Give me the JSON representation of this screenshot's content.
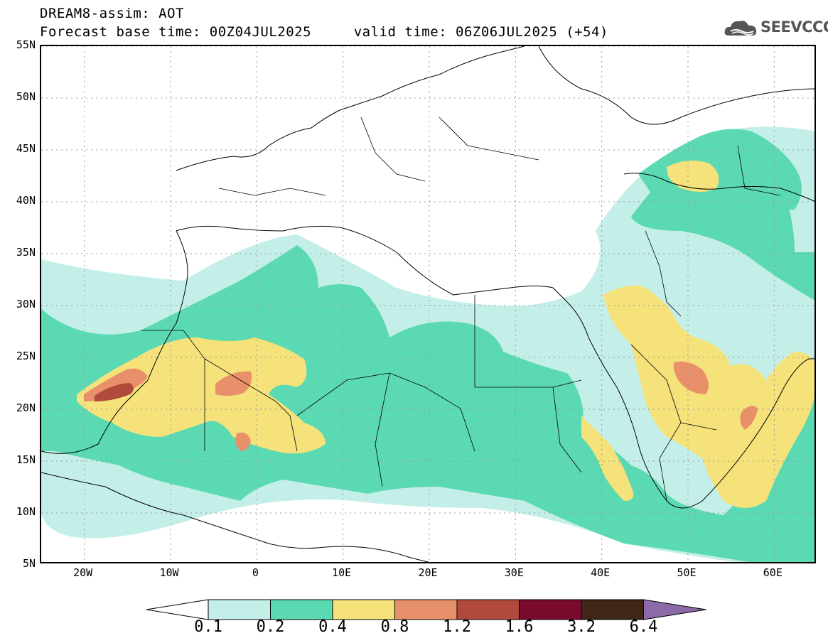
{
  "header": {
    "title_line1": "DREAM8-assim: AOT",
    "title_line2": "Forecast base time: 00Z04JUL2025     valid time: 06Z06JUL2025 (+54)"
  },
  "logo": {
    "text": "SEEVCCC",
    "icon": "cloud-logo-icon",
    "color": "#555555"
  },
  "map": {
    "lon_range": [
      -25,
      65
    ],
    "lat_range": [
      5,
      55
    ],
    "lat_ticks": [
      {
        "value": 55,
        "label": "55N"
      },
      {
        "value": 50,
        "label": "50N"
      },
      {
        "value": 45,
        "label": "45N"
      },
      {
        "value": 40,
        "label": "40N"
      },
      {
        "value": 35,
        "label": "35N"
      },
      {
        "value": 30,
        "label": "30N"
      },
      {
        "value": 25,
        "label": "25N"
      },
      {
        "value": 20,
        "label": "20N"
      },
      {
        "value": 15,
        "label": "15N"
      },
      {
        "value": 10,
        "label": "10N"
      },
      {
        "value": 5,
        "label": "5N"
      }
    ],
    "lon_ticks": [
      {
        "value": -20,
        "label": "20W"
      },
      {
        "value": -10,
        "label": "10W"
      },
      {
        "value": 0,
        "label": "0"
      },
      {
        "value": 10,
        "label": "10E"
      },
      {
        "value": 20,
        "label": "20E"
      },
      {
        "value": 30,
        "label": "30E"
      },
      {
        "value": 40,
        "label": "40E"
      },
      {
        "value": 50,
        "label": "50E"
      },
      {
        "value": 60,
        "label": "60E"
      }
    ],
    "grid": true
  },
  "colorbar": {
    "levels": [
      "0.1",
      "0.2",
      "0.4",
      "0.8",
      "1.2",
      "1.6",
      "3.2",
      "6.4"
    ],
    "colors": [
      "#c4efe9",
      "#5ad9b2",
      "#f5e27a",
      "#e8906a",
      "#b04a3c",
      "#7a0a2c",
      "#3f2616",
      "#8b6aa7"
    ],
    "lower_extend_color": "#ffffff",
    "upper_extend_color": "#8b6aa7"
  }
}
